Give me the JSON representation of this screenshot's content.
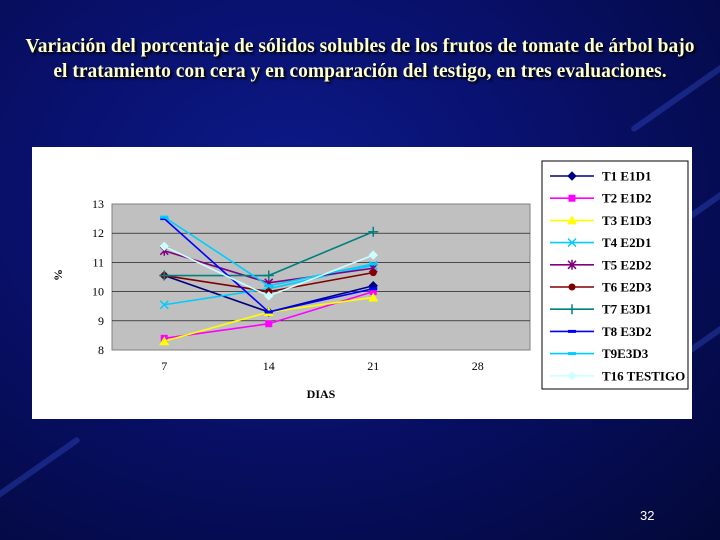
{
  "slide": {
    "title": "Variación del porcentaje de sólidos solubles de los frutos de tomate de árbol bajo el tratamiento con cera y en comparación del testigo, en tres evaluaciones.",
    "page_number": "32"
  },
  "chart_data": {
    "type": "line",
    "title": "",
    "xlabel": "DIAS",
    "ylabel": "%",
    "categories": [
      "7",
      "14",
      "21",
      "28"
    ],
    "ylim": [
      8,
      13
    ],
    "yticks": [
      "8",
      "9",
      "10",
      "11",
      "12",
      "13"
    ],
    "grid": true,
    "legend": "right",
    "series": [
      {
        "name": "T1 E1D1",
        "color": "#000080",
        "marker": "diamond",
        "values": [
          10.55,
          9.3,
          10.2,
          null
        ]
      },
      {
        "name": "T2 E1D2",
        "color": "#ff00ff",
        "marker": "square",
        "values": [
          8.4,
          8.9,
          10.0,
          null
        ]
      },
      {
        "name": "T3 E1D3",
        "color": "#ffff00",
        "marker": "triangle",
        "values": [
          8.3,
          9.3,
          9.8,
          null
        ]
      },
      {
        "name": "T4 E2D1",
        "color": "#00ccff",
        "marker": "x",
        "values": [
          9.55,
          10.1,
          10.9,
          null
        ]
      },
      {
        "name": "T5 E2D2",
        "color": "#800080",
        "marker": "star",
        "values": [
          11.4,
          10.3,
          10.8,
          null
        ]
      },
      {
        "name": "T6 E2D3",
        "color": "#800000",
        "marker": "circle",
        "values": [
          10.55,
          10.0,
          10.65,
          null
        ]
      },
      {
        "name": "T7 E3D1",
        "color": "#008080",
        "marker": "plus",
        "values": [
          10.55,
          10.55,
          12.05,
          null
        ]
      },
      {
        "name": "T8 E3D2",
        "color": "#0000ff",
        "marker": "dash",
        "values": [
          12.5,
          9.3,
          10.1,
          null
        ]
      },
      {
        "name": "T9E3D3",
        "color": "#00ccff",
        "marker": "dash",
        "values": [
          12.55,
          10.2,
          10.95,
          null
        ]
      },
      {
        "name": "T16 TESTIGO",
        "color": "#ccffff",
        "marker": "diamond",
        "values": [
          11.55,
          9.85,
          11.25,
          null
        ]
      }
    ]
  }
}
